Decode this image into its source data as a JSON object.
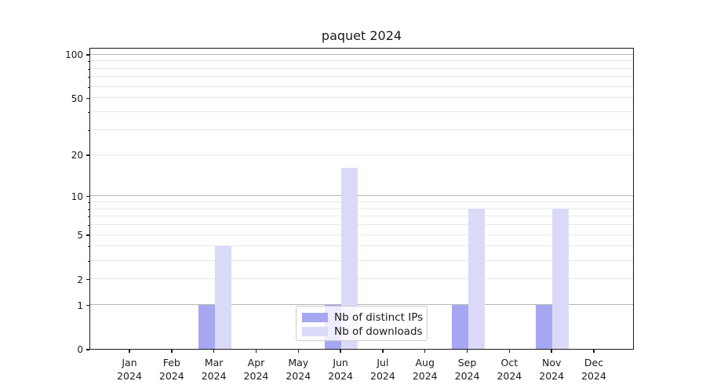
{
  "chart_data": {
    "type": "bar",
    "title": "paquet 2024",
    "x_months": [
      "Jan",
      "Feb",
      "Mar",
      "Apr",
      "May",
      "Jun",
      "Jul",
      "Aug",
      "Sep",
      "Oct",
      "Nov",
      "Dec"
    ],
    "x_year": "2024",
    "series": [
      {
        "name": "Nb of distinct IPs",
        "color": "#a6a6f2",
        "values": [
          0,
          0,
          1,
          0,
          0,
          1,
          0,
          0,
          1,
          0,
          1,
          0
        ]
      },
      {
        "name": "Nb of downloads",
        "color": "#dadaf8",
        "values": [
          0,
          0,
          4,
          0,
          0,
          16,
          0,
          0,
          8,
          0,
          8,
          0
        ]
      }
    ],
    "y_scale": "log10(1+v)",
    "ylim": [
      0,
      112
    ],
    "yticks_labeled": [
      0,
      1,
      2,
      5,
      10,
      20,
      50,
      100
    ],
    "yticks_minor": [
      3,
      4,
      6,
      7,
      8,
      9,
      30,
      40,
      60,
      70,
      80,
      90
    ],
    "grid_major_at": [
      1,
      10,
      100
    ],
    "grid": true,
    "legend_position": "lower center",
    "colors": {
      "grid_major": "#b5b5b5",
      "grid_minor": "#e7e7e7",
      "spine": "#1a1a1a",
      "text": "#1a1a1a"
    }
  }
}
